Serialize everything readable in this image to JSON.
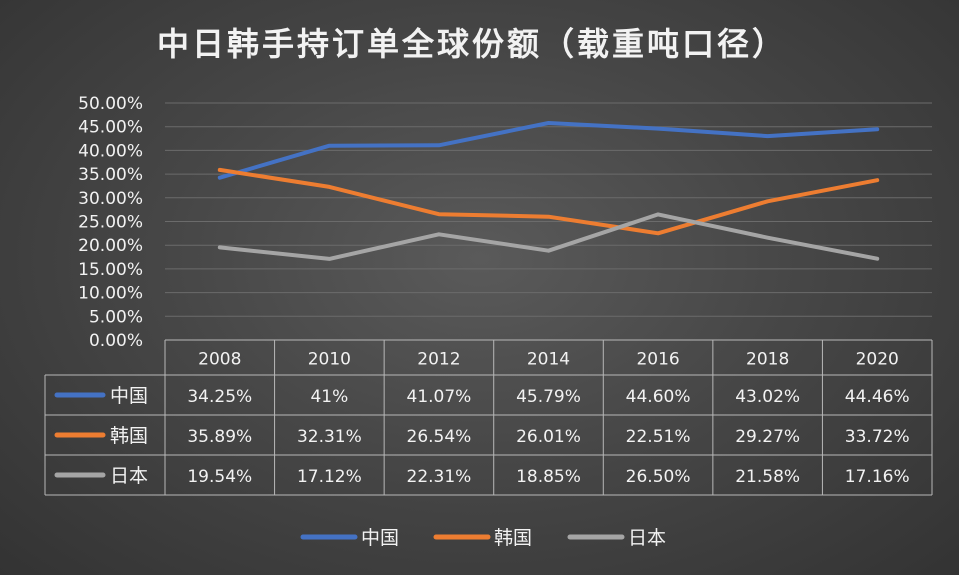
{
  "chart_data": {
    "type": "line",
    "title": "中日韩手持订单全球份额（载重吨口径）",
    "categories": [
      "2008",
      "2010",
      "2012",
      "2014",
      "2016",
      "2018",
      "2020"
    ],
    "ylim": [
      0,
      50
    ],
    "yticks": [
      "0.00%",
      "5.00%",
      "10.00%",
      "15.00%",
      "20.00%",
      "25.00%",
      "30.00%",
      "35.00%",
      "40.00%",
      "45.00%",
      "50.00%"
    ],
    "grid": true,
    "legend_position": "bottom",
    "series": [
      {
        "name": "中国",
        "color": "#4472C4",
        "values": [
          34.25,
          41,
          41.07,
          45.79,
          44.6,
          43.02,
          44.46
        ],
        "labels": [
          "34.25%",
          "41%",
          "41.07%",
          "45.79%",
          "44.60%",
          "43.02%",
          "44.46%"
        ]
      },
      {
        "name": "韩国",
        "color": "#ED7D31",
        "values": [
          35.89,
          32.31,
          26.54,
          26.01,
          22.51,
          29.27,
          33.72
        ],
        "labels": [
          "35.89%",
          "32.31%",
          "26.54%",
          "26.01%",
          "22.51%",
          "29.27%",
          "33.72%"
        ]
      },
      {
        "name": "日本",
        "color": "#A5A5A5",
        "values": [
          19.54,
          17.12,
          22.31,
          18.85,
          26.5,
          21.58,
          17.16
        ],
        "labels": [
          "19.54%",
          "17.12%",
          "22.31%",
          "18.85%",
          "26.50%",
          "21.58%",
          "17.16%"
        ]
      }
    ]
  }
}
